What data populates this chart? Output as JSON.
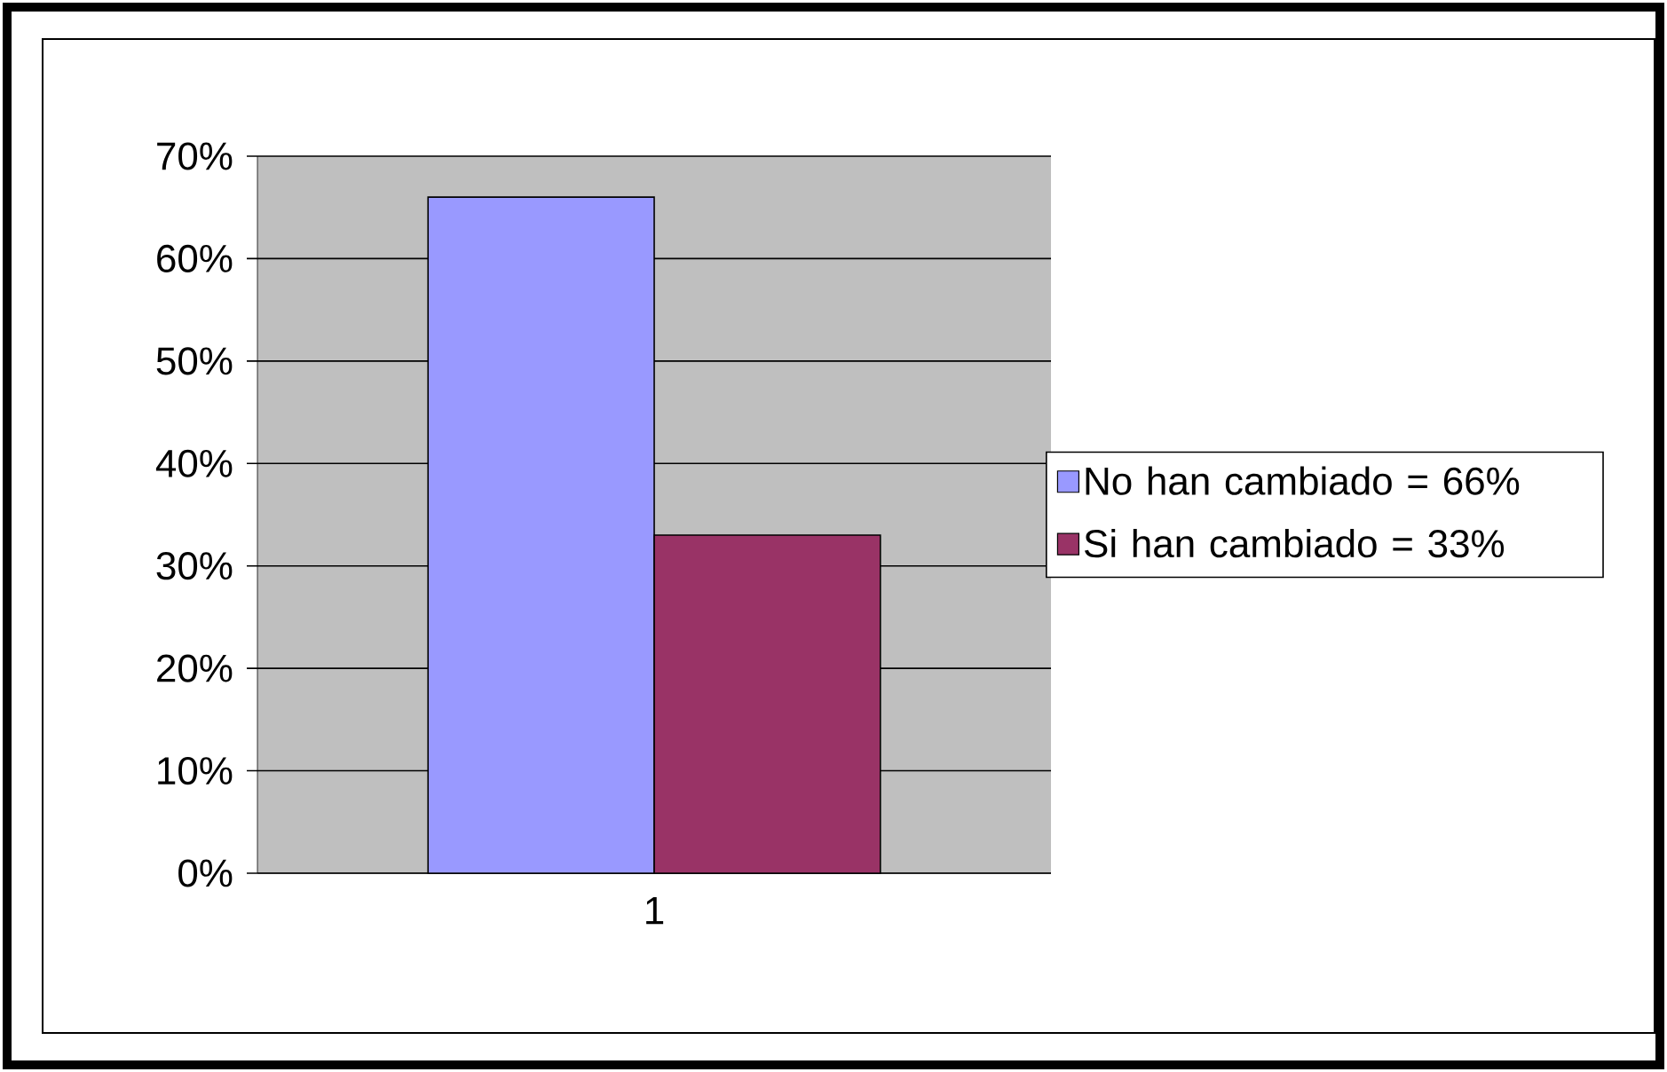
{
  "chart_data": {
    "type": "bar",
    "categories": [
      "1"
    ],
    "series": [
      {
        "name": "No han cambiado = 66%",
        "color": "#9999ff",
        "values": [
          66
        ]
      },
      {
        "name": "Si han cambiado = 33%",
        "color": "#993366",
        "values": [
          33
        ]
      }
    ],
    "ylim": [
      0,
      70
    ],
    "yticks": [
      {
        "value": 0,
        "label": "0%"
      },
      {
        "value": 10,
        "label": "10%"
      },
      {
        "value": 20,
        "label": "20%"
      },
      {
        "value": 30,
        "label": "30%"
      },
      {
        "value": 40,
        "label": "40%"
      },
      {
        "value": 50,
        "label": "50%"
      },
      {
        "value": 60,
        "label": "60%"
      },
      {
        "value": 70,
        "label": "70%"
      }
    ],
    "grid": "y",
    "legend": "right"
  }
}
